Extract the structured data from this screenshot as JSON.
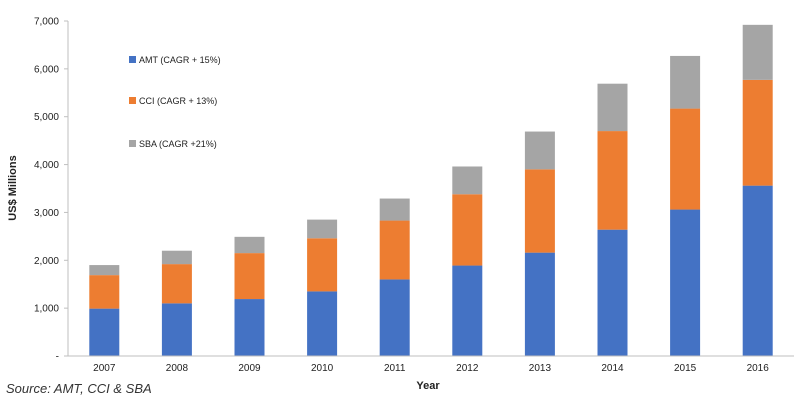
{
  "chart_data": {
    "type": "bar",
    "stacked": true,
    "title": "",
    "xlabel": "Year",
    "ylabel": "US$ Millions",
    "ylim": [
      0,
      7000
    ],
    "y_ticks": [
      "-",
      "1,000",
      "2,000",
      "3,000",
      "4,000",
      "5,000",
      "6,000",
      "7,000"
    ],
    "grid": false,
    "legend_position": "top-left",
    "categories": [
      "2007",
      "2008",
      "2009",
      "2010",
      "2011",
      "2012",
      "2013",
      "2014",
      "2015",
      "2016"
    ],
    "series": [
      {
        "name": "AMT (CAGR + 15%)",
        "legend_label": "AMT (CAGR + 15%)",
        "color": "#4472C4",
        "values": [
          990,
          1100,
          1190,
          1350,
          1600,
          1890,
          2160,
          2640,
          3060,
          3560
        ]
      },
      {
        "name": "CCI (CAGR + 13%)",
        "legend_label": "CCI (CAGR + 13%)",
        "color": "#ED7D31",
        "values": [
          700,
          820,
          960,
          1110,
          1230,
          1490,
          1740,
          2060,
          2110,
          2210
        ]
      },
      {
        "name": "SBA (CAGR +21%)",
        "legend_label": "SBA (CAGR +21%)",
        "color": "#A5A5A5",
        "values": [
          210,
          280,
          340,
          390,
          460,
          580,
          790,
          990,
          1100,
          1150
        ]
      }
    ]
  },
  "source_text": "Source: AMT, CCI & SBA"
}
